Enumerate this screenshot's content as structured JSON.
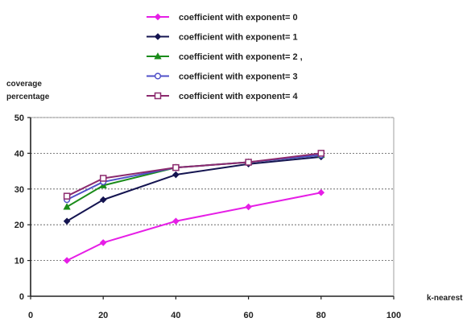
{
  "chart_data": {
    "type": "line",
    "ylabel_lines": [
      "coverage",
      "percentage"
    ],
    "xlabel": "k-nearest",
    "xlim": [
      0,
      100
    ],
    "ylim": [
      0,
      50
    ],
    "x_ticks": [
      0,
      20,
      40,
      60,
      80,
      100
    ],
    "y_ticks": [
      0,
      10,
      20,
      30,
      40,
      50
    ],
    "grid": "horizontal dashed",
    "legend_position": "top",
    "series": [
      {
        "name": "coefficient with exponent= 0",
        "color": "#e61ee6",
        "marker": "diamond-filled",
        "x": [
          10,
          20,
          40,
          60,
          80
        ],
        "y": [
          10,
          15,
          21,
          25,
          29
        ]
      },
      {
        "name": "coefficient with exponent= 1",
        "color": "#141450",
        "marker": "diamond-filled",
        "x": [
          10,
          20,
          40,
          60,
          80
        ],
        "y": [
          21,
          27,
          34,
          37,
          39
        ]
      },
      {
        "name": "coefficient with exponent= 2 ,",
        "color": "#1a8c1a",
        "marker": "triangle-filled",
        "x": [
          10,
          20,
          40,
          60,
          80
        ],
        "y": [
          25,
          31,
          36,
          37.5,
          39.5
        ]
      },
      {
        "name": "coefficient with exponent= 3",
        "color": "#5050c8",
        "marker": "circle-open",
        "x": [
          10,
          20,
          40,
          60,
          80
        ],
        "y": [
          27,
          32,
          36,
          37.5,
          39.5
        ]
      },
      {
        "name": "coefficient with exponent= 4",
        "color": "#8c2a6e",
        "marker": "square-open",
        "x": [
          10,
          20,
          40,
          60,
          80
        ],
        "y": [
          28,
          33,
          36,
          37.5,
          40
        ]
      }
    ]
  }
}
